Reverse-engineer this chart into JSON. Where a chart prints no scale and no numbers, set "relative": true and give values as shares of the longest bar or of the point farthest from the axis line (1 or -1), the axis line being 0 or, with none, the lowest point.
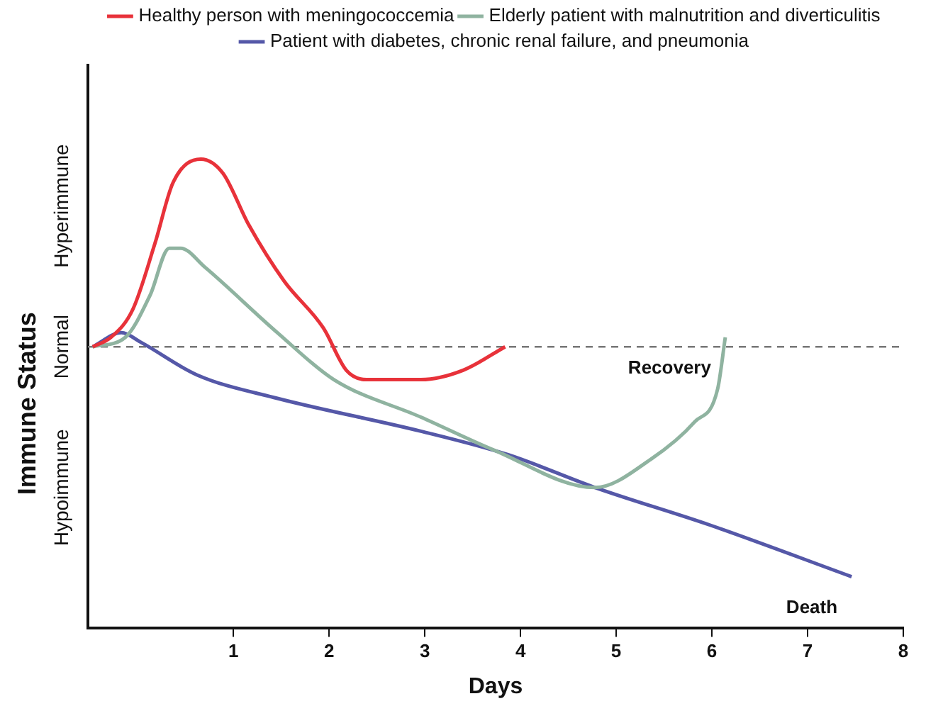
{
  "chart_data": {
    "type": "line",
    "relative": true,
    "xlabel": "Days",
    "ylabel": "Immune Status",
    "xlim": [
      -0.52,
      8
    ],
    "xticks": [
      1,
      2,
      3,
      4,
      5,
      6,
      7,
      8
    ],
    "series": [
      {
        "name": "Healthy person with meningococcemia",
        "color": "#e8323a",
        "x": [
          -0.47,
          -0.28,
          -0.05,
          0.18,
          0.37,
          0.66,
          0.89,
          1.16,
          1.53,
          1.94,
          2.18,
          2.39,
          2.96,
          3.4,
          3.84
        ],
        "values": [
          0.6,
          0.62,
          0.68,
          0.82,
          0.95,
          1.0,
          0.97,
          0.86,
          0.74,
          0.64,
          0.55,
          0.53,
          0.53,
          0.55,
          0.6
        ]
      },
      {
        "name": "Elderly patient with malnutrition and diverticulitis",
        "color": "#8fb3a0",
        "x": [
          -0.47,
          -0.13,
          0.13,
          0.33,
          0.45,
          0.7,
          1.46,
          2.05,
          2.96,
          3.72,
          4.78,
          5.36,
          5.82,
          6.06,
          6.14
        ],
        "values": [
          0.6,
          0.62,
          0.71,
          0.81,
          0.81,
          0.77,
          0.63,
          0.53,
          0.45,
          0.38,
          0.3,
          0.36,
          0.44,
          0.51,
          0.62
        ]
      },
      {
        "name": "Patient with diabetes, chronic renal failure, and pneumonia",
        "color": "#5558a8",
        "x": [
          -0.47,
          -0.17,
          0.03,
          0.62,
          1.46,
          2.96,
          3.87,
          4.78,
          5.98,
          7.46
        ],
        "values": [
          0.6,
          0.63,
          0.61,
          0.54,
          0.49,
          0.42,
          0.37,
          0.3,
          0.22,
          0.11
        ]
      }
    ],
    "ref_lines": [
      {
        "axis": "y",
        "value": 0.6,
        "label": "Normal",
        "color": "#777777",
        "line_style": "dashed"
      }
    ],
    "annotations": [
      "Hyperimmune",
      "Hypoimmune",
      {
        "text": "Recovery",
        "x": 6.14,
        "y": 0.62
      },
      {
        "text": "Death",
        "x": 7.46,
        "y": 0.11
      }
    ],
    "legend": "top",
    "marker": "none",
    "line_style": "solid",
    "grid": false
  }
}
